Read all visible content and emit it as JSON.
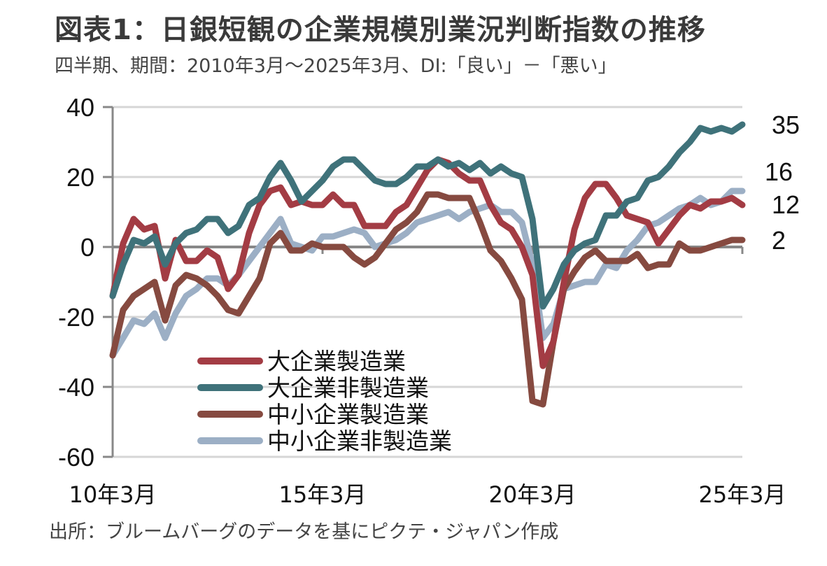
{
  "title": "図表1：日銀短観の企業規模別業況判断指数の推移",
  "subtitle": "四半期、期間：2010年3月～2025年3月、DI:「良い」－「悪い」",
  "source": "出所：ブルームバーグのデータを基にピクテ・ジャパン作成",
  "chart_data": {
    "type": "line",
    "title": "図表1：日銀短観の企業規模別業況判断指数の推移",
    "xlabel": "",
    "ylabel": "",
    "ylim": [
      -60,
      40
    ],
    "yticks": [
      40,
      20,
      0,
      -20,
      -40,
      -60
    ],
    "ytick_labels": [
      "40",
      "20",
      "0",
      "-20",
      "-40",
      "-60"
    ],
    "xticks": [
      {
        "index": 0,
        "label": "10年3月"
      },
      {
        "index": 20,
        "label": "15年3月"
      },
      {
        "index": 40,
        "label": "20年3月"
      },
      {
        "index": 60,
        "label": "25年3月"
      }
    ],
    "grid": true,
    "legend_position": "bottom-center",
    "frequency": "quarterly",
    "x_start": "2010年3月",
    "x_end": "2025年3月",
    "end_labels": [
      "35",
      "16",
      "12",
      "2"
    ],
    "series": [
      {
        "name": "大企業製造業",
        "color": "#a33c44",
        "end_label": "12",
        "values": [
          -14,
          1,
          8,
          5,
          6,
          -9,
          2,
          -4,
          -4,
          -1,
          -3,
          -12,
          -8,
          4,
          12,
          16,
          17,
          12,
          13,
          12,
          12,
          15,
          12,
          12,
          6,
          6,
          6,
          10,
          12,
          17,
          22,
          25,
          24,
          21,
          19,
          19,
          12,
          7,
          5,
          0,
          -8,
          -34,
          -27,
          -10,
          5,
          14,
          18,
          18,
          14,
          9,
          8,
          7,
          1,
          5,
          9,
          12,
          11,
          13,
          13,
          14,
          12
        ]
      },
      {
        "name": "大企業非製造業",
        "color": "#3f727a",
        "end_label": "35",
        "values": [
          -14,
          -5,
          2,
          1,
          3,
          -5,
          1,
          4,
          5,
          8,
          8,
          4,
          6,
          12,
          14,
          20,
          24,
          19,
          13,
          16,
          19,
          23,
          25,
          25,
          22,
          19,
          18,
          18,
          20,
          23,
          23,
          25,
          23,
          24,
          22,
          24,
          21,
          23,
          21,
          20,
          8,
          -17,
          -12,
          -5,
          -1,
          1,
          2,
          9,
          9,
          13,
          14,
          19,
          20,
          23,
          27,
          30,
          34,
          33,
          34,
          33,
          35
        ]
      },
      {
        "name": "中小企業製造業",
        "color": "#864a40",
        "end_label": "2",
        "values": [
          -31,
          -18,
          -14,
          -12,
          -10,
          -21,
          -11,
          -8,
          -9,
          -11,
          -14,
          -18,
          -19,
          -14,
          -9,
          1,
          4,
          -1,
          -1,
          1,
          0,
          0,
          0,
          -3,
          -5,
          -3,
          1,
          5,
          7,
          10,
          15,
          15,
          14,
          14,
          14,
          7,
          -1,
          -4,
          -9,
          -15,
          -44,
          -45,
          -27,
          -12,
          -7,
          -3,
          -1,
          -4,
          -4,
          -4,
          -2,
          -6,
          -5,
          -5,
          1,
          -1,
          -1,
          0,
          1,
          2,
          2
        ]
      },
      {
        "name": "中小企業非製造業",
        "color": "#9cafc5",
        "end_label": "16",
        "values": [
          -31,
          -26,
          -21,
          -22,
          -19,
          -26,
          -19,
          -14,
          -12,
          -9,
          -9,
          -11,
          -8,
          -4,
          0,
          4,
          8,
          1,
          0,
          -1,
          3,
          3,
          4,
          5,
          4,
          0,
          1,
          2,
          4,
          7,
          8,
          9,
          10,
          8,
          10,
          11,
          12,
          10,
          10,
          7,
          -5,
          -26,
          -22,
          -12,
          -11,
          -10,
          -10,
          -5,
          -6,
          -1,
          2,
          6,
          7,
          9,
          11,
          12,
          14,
          12,
          13,
          16,
          16
        ]
      }
    ]
  }
}
